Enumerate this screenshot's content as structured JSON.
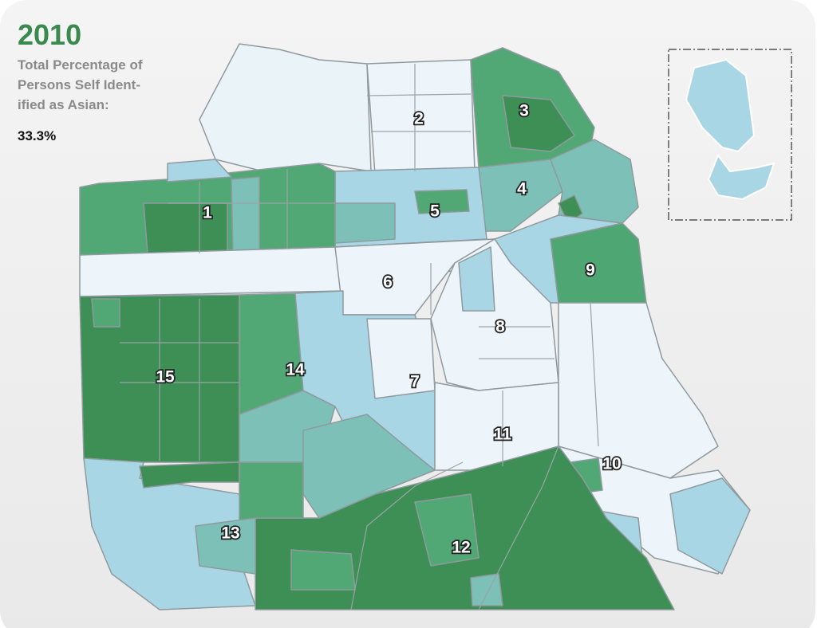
{
  "header": {
    "title": "2010",
    "description": [
      "Total Percentage of",
      "Persons Self Ident-",
      "ified as Asian:"
    ],
    "value": "33.3%"
  },
  "districts": [
    "1",
    "2",
    "3",
    "4",
    "5",
    "6",
    "7",
    "8",
    "9",
    "10",
    "11",
    "12",
    "13",
    "14",
    "15"
  ]
}
